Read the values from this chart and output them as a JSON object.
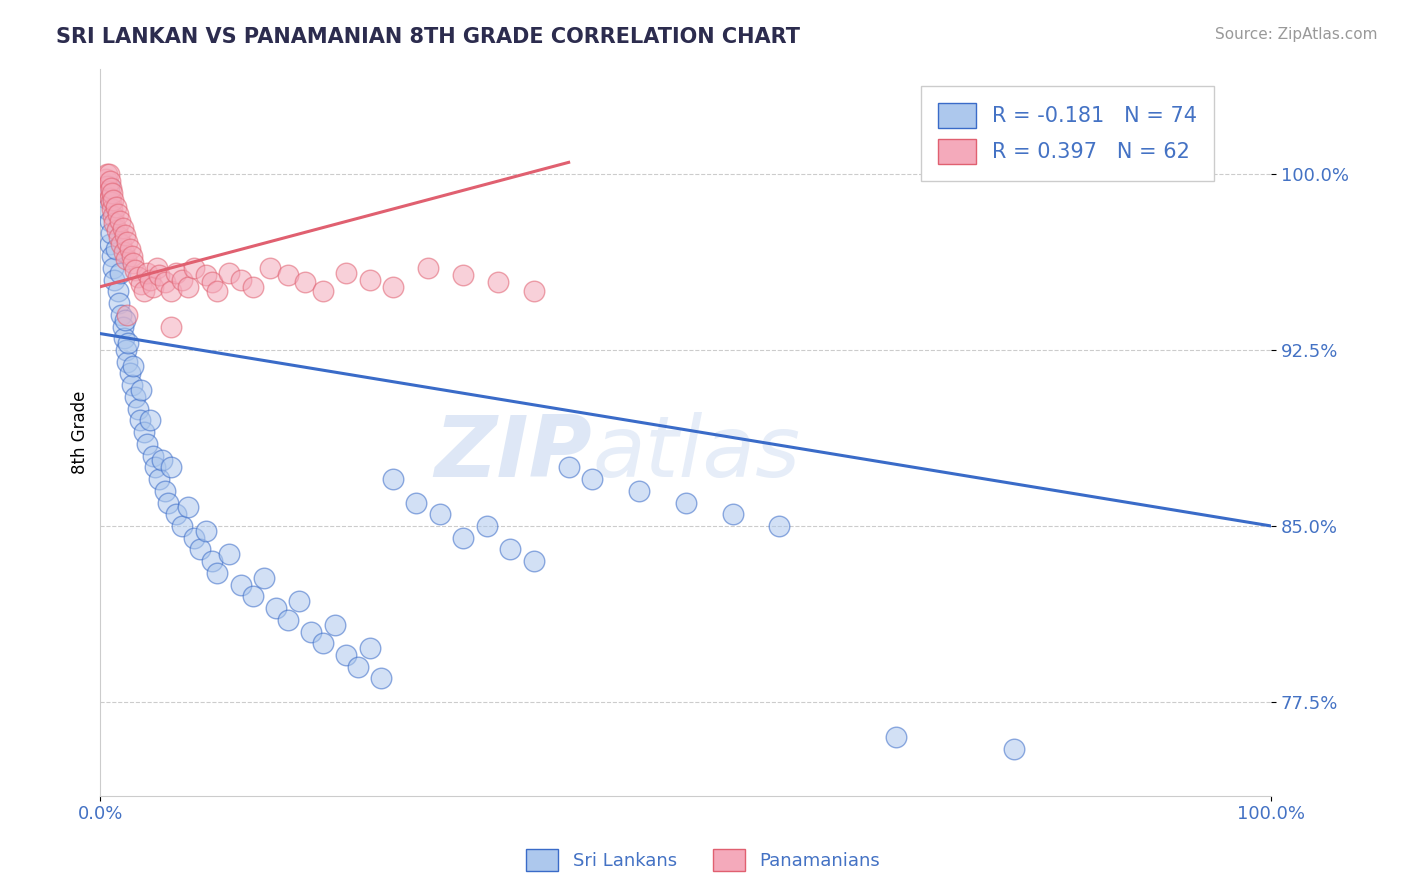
{
  "title": "SRI LANKAN VS PANAMANIAN 8TH GRADE CORRELATION CHART",
  "source_text": "Source: ZipAtlas.com",
  "ylabel": "8th Grade",
  "yticks": [
    0.775,
    0.85,
    0.925,
    1.0
  ],
  "ytick_labels": [
    "77.5%",
    "85.0%",
    "92.5%",
    "100.0%"
  ],
  "xmin": 0.0,
  "xmax": 1.0,
  "ymin": 0.735,
  "ymax": 1.045,
  "blue_R": -0.181,
  "blue_N": 74,
  "pink_R": 0.397,
  "pink_N": 62,
  "blue_color": "#adc8ed",
  "pink_color": "#f4aabb",
  "blue_line_color": "#3a6bc8",
  "pink_line_color": "#e06070",
  "watermark_zip": "ZIP",
  "watermark_atlas": "atlas",
  "legend_label_blue": "Sri Lankans",
  "legend_label_pink": "Panamanians",
  "blue_trend_x": [
    0.0,
    1.0
  ],
  "blue_trend_y": [
    0.932,
    0.85
  ],
  "pink_trend_x": [
    0.0,
    0.4
  ],
  "pink_trend_y": [
    0.952,
    1.005
  ],
  "blue_scatter_x": [
    0.005,
    0.006,
    0.007,
    0.008,
    0.008,
    0.009,
    0.01,
    0.011,
    0.012,
    0.013,
    0.015,
    0.016,
    0.017,
    0.018,
    0.019,
    0.02,
    0.021,
    0.022,
    0.023,
    0.024,
    0.025,
    0.027,
    0.028,
    0.03,
    0.032,
    0.034,
    0.035,
    0.037,
    0.04,
    0.042,
    0.045,
    0.047,
    0.05,
    0.053,
    0.055,
    0.058,
    0.06,
    0.065,
    0.07,
    0.075,
    0.08,
    0.085,
    0.09,
    0.095,
    0.1,
    0.11,
    0.12,
    0.13,
    0.14,
    0.15,
    0.16,
    0.17,
    0.18,
    0.19,
    0.2,
    0.21,
    0.22,
    0.23,
    0.24,
    0.25,
    0.27,
    0.29,
    0.31,
    0.33,
    0.35,
    0.37,
    0.4,
    0.42,
    0.46,
    0.5,
    0.54,
    0.58,
    0.68,
    0.78
  ],
  "blue_scatter_y": [
    0.99,
    0.985,
    0.995,
    0.98,
    0.97,
    0.975,
    0.965,
    0.96,
    0.955,
    0.968,
    0.95,
    0.945,
    0.958,
    0.94,
    0.935,
    0.93,
    0.938,
    0.925,
    0.92,
    0.928,
    0.915,
    0.91,
    0.918,
    0.905,
    0.9,
    0.895,
    0.908,
    0.89,
    0.885,
    0.895,
    0.88,
    0.875,
    0.87,
    0.878,
    0.865,
    0.86,
    0.875,
    0.855,
    0.85,
    0.858,
    0.845,
    0.84,
    0.848,
    0.835,
    0.83,
    0.838,
    0.825,
    0.82,
    0.828,
    0.815,
    0.81,
    0.818,
    0.805,
    0.8,
    0.808,
    0.795,
    0.79,
    0.798,
    0.785,
    0.87,
    0.86,
    0.855,
    0.845,
    0.85,
    0.84,
    0.835,
    0.875,
    0.87,
    0.865,
    0.86,
    0.855,
    0.85,
    0.76,
    0.755
  ],
  "pink_scatter_x": [
    0.005,
    0.006,
    0.006,
    0.007,
    0.007,
    0.008,
    0.008,
    0.009,
    0.009,
    0.01,
    0.01,
    0.011,
    0.011,
    0.012,
    0.013,
    0.014,
    0.015,
    0.016,
    0.017,
    0.018,
    0.019,
    0.02,
    0.021,
    0.022,
    0.023,
    0.025,
    0.027,
    0.028,
    0.03,
    0.032,
    0.035,
    0.037,
    0.04,
    0.042,
    0.045,
    0.048,
    0.05,
    0.055,
    0.06,
    0.065,
    0.07,
    0.075,
    0.08,
    0.09,
    0.095,
    0.1,
    0.11,
    0.12,
    0.13,
    0.145,
    0.16,
    0.175,
    0.19,
    0.21,
    0.23,
    0.25,
    0.28,
    0.31,
    0.34,
    0.37,
    0.023,
    0.06
  ],
  "pink_scatter_y": [
    0.998,
    1.0,
    0.995,
    0.993,
    1.0,
    0.99,
    0.997,
    0.988,
    0.994,
    0.985,
    0.992,
    0.982,
    0.989,
    0.979,
    0.986,
    0.976,
    0.983,
    0.973,
    0.98,
    0.97,
    0.977,
    0.967,
    0.974,
    0.964,
    0.971,
    0.968,
    0.965,
    0.962,
    0.959,
    0.956,
    0.953,
    0.95,
    0.958,
    0.955,
    0.952,
    0.96,
    0.957,
    0.954,
    0.95,
    0.958,
    0.955,
    0.952,
    0.96,
    0.957,
    0.954,
    0.95,
    0.958,
    0.955,
    0.952,
    0.96,
    0.957,
    0.954,
    0.95,
    0.958,
    0.955,
    0.952,
    0.96,
    0.957,
    0.954,
    0.95,
    0.94,
    0.935
  ]
}
